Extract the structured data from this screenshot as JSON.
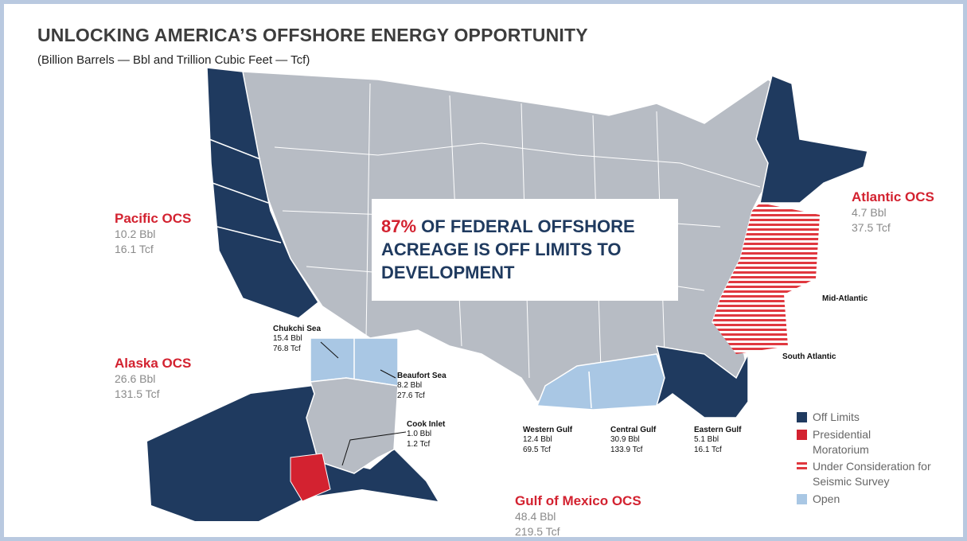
{
  "title": "UNLOCKING AMERICA’S OFFSHORE ENERGY OPPORTUNITY",
  "subtitle": "(Billion Barrels — Bbl and Trillion Cubic Feet — Tcf)",
  "callout": {
    "percent": "87%",
    "text": "OF FEDERAL OFFSHORE ACREAGE IS OFF LIMITS TO DEVELOPMENT"
  },
  "regions": [
    {
      "name": "Pacific OCS",
      "oil": "10.2 Bbl",
      "gas": "16.1 Tcf"
    },
    {
      "name": "Atlantic OCS",
      "oil": "4.7 Bbl",
      "gas": "37.5 Tcf"
    },
    {
      "name": "Alaska OCS",
      "oil": "26.6 Bbl",
      "gas": "131.5 Tcf"
    },
    {
      "name": "Gulf of Mexico OCS",
      "oil": "48.4 Bbl",
      "gas": "219.5 Tcf"
    }
  ],
  "areas": [
    {
      "name": "Chukchi Sea",
      "oil": "15.4 Bbl",
      "gas": "76.8 Tcf"
    },
    {
      "name": "Beaufort Sea",
      "oil": "8.2 Bbl",
      "gas": "27.6 Tcf"
    },
    {
      "name": "Cook Inlet",
      "oil": "1.0 Bbl",
      "gas": "1.2 Tcf"
    },
    {
      "name": "Western Gulf",
      "oil": "12.4 Bbl",
      "gas": "69.5 Tcf"
    },
    {
      "name": "Central Gulf",
      "oil": "30.9 Bbl",
      "gas": "133.9 Tcf"
    },
    {
      "name": "Eastern Gulf",
      "oil": "5.1 Bbl",
      "gas": "16.1 Tcf"
    },
    {
      "name": "Mid-Atlantic"
    },
    {
      "name": "South Atlantic"
    }
  ],
  "legend": [
    "Off Limits",
    "Presidential Moratorium",
    "Under Consideration for Seismic Survey",
    "Open"
  ]
}
